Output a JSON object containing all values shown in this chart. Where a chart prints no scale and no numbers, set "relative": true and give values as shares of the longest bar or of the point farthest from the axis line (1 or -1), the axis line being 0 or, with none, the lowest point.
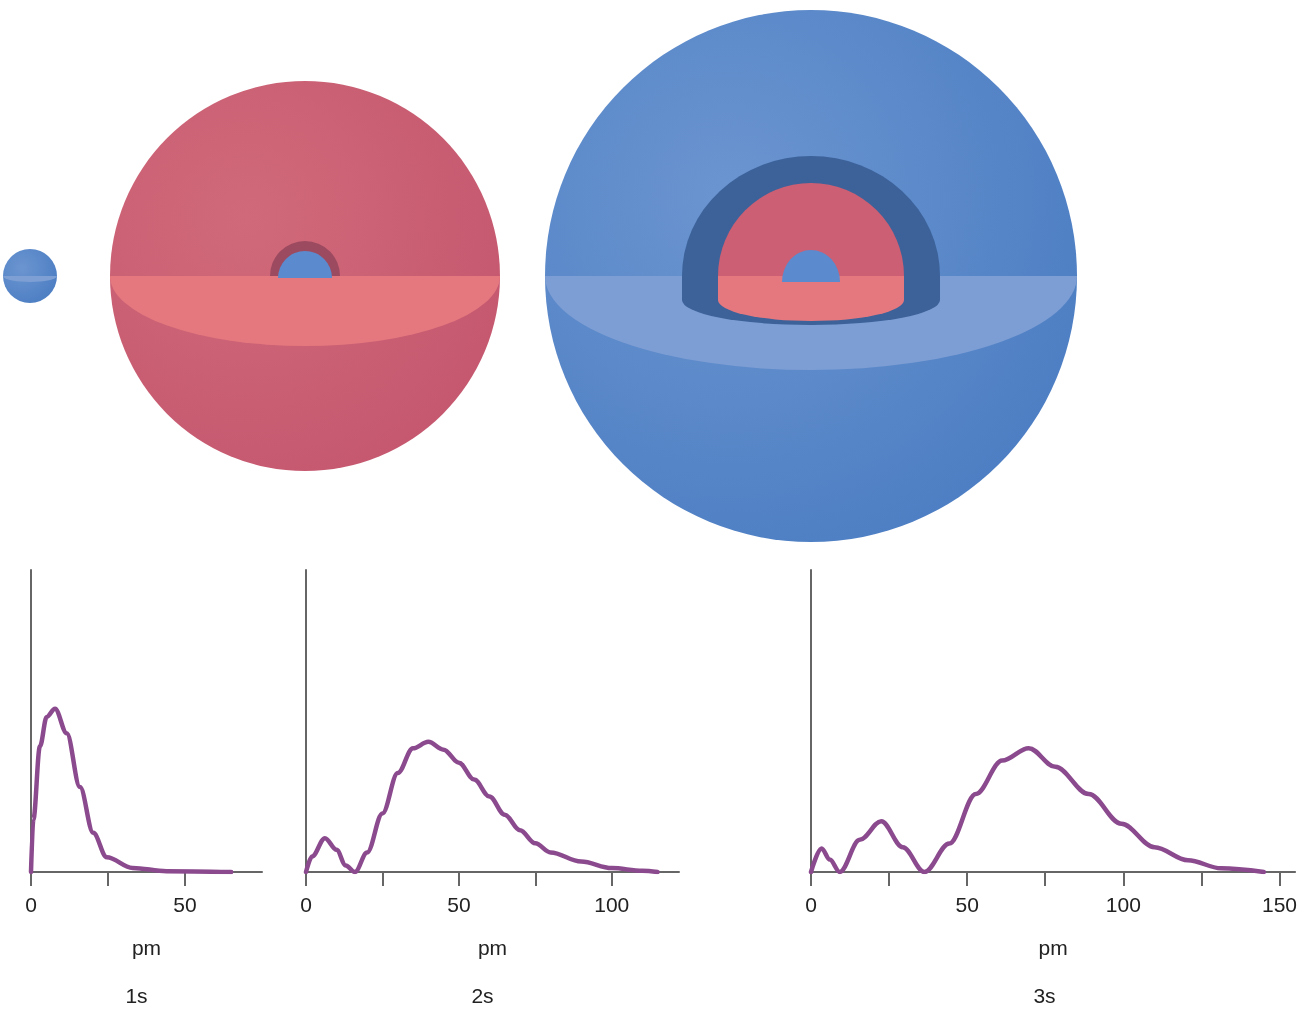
{
  "chart_data": [
    {
      "type": "line",
      "title": "1s",
      "xlabel": "pm",
      "relative": true,
      "tick_labels": "x",
      "xlim": [
        0,
        75
      ],
      "xticks": [
        0,
        {
          "value": 25,
          "label": null
        },
        50
      ],
      "series": [
        {
          "color": "#8b4a8e",
          "x": [
            0,
            0.75,
            2.9,
            5.1,
            7.8,
            11.6,
            15.9,
            20.2,
            24.6,
            33,
            44,
            65
          ],
          "values": [
            0,
            0.32,
            0.77,
            0.95,
            1,
            0.85,
            0.52,
            0.24,
            0.09,
            0.025,
            0.005,
            0
          ]
        }
      ]
    },
    {
      "type": "line",
      "title": "2s",
      "xlabel": "pm",
      "relative": true,
      "tick_labels": "x",
      "xlim": [
        0,
        122
      ],
      "xticks": [
        0,
        {
          "value": 25,
          "label": null
        },
        50,
        {
          "value": 75,
          "label": null
        },
        100
      ],
      "series": [
        {
          "color": "#8b4a8e",
          "x": [
            0,
            2,
            6.2,
            10,
            13,
            16,
            20,
            25,
            30,
            35,
            40,
            45,
            50,
            55,
            60,
            65,
            70,
            75,
            80,
            90,
            100,
            110,
            115
          ],
          "values": [
            0,
            0.12,
            0.26,
            0.17,
            0.05,
            0,
            0.15,
            0.45,
            0.76,
            0.95,
            1,
            0.94,
            0.84,
            0.71,
            0.58,
            0.44,
            0.32,
            0.22,
            0.15,
            0.08,
            0.03,
            0.01,
            0
          ]
        }
      ]
    },
    {
      "type": "line",
      "title": "3s",
      "xlabel": "pm",
      "relative": true,
      "tick_labels": "x",
      "xlim": [
        0,
        155
      ],
      "xticks": [
        0,
        {
          "value": 25,
          "label": null
        },
        50,
        {
          "value": 75,
          "label": null
        },
        100,
        {
          "value": 125,
          "label": null
        },
        150
      ],
      "series": [
        {
          "color": "#8b4a8e",
          "x": [
            0,
            3.4,
            6,
            9.2,
            15.6,
            22.5,
            29.4,
            36.3,
            44.3,
            52.8,
            61.2,
            69.7,
            78.2,
            88.9,
            99.4,
            110,
            120.7,
            131.3,
            145
          ],
          "values": [
            0,
            0.19,
            0.1,
            0,
            0.26,
            0.41,
            0.2,
            0,
            0.23,
            0.63,
            0.9,
            1,
            0.85,
            0.63,
            0.39,
            0.2,
            0.095,
            0.03,
            0
          ]
        }
      ]
    }
  ]
}
